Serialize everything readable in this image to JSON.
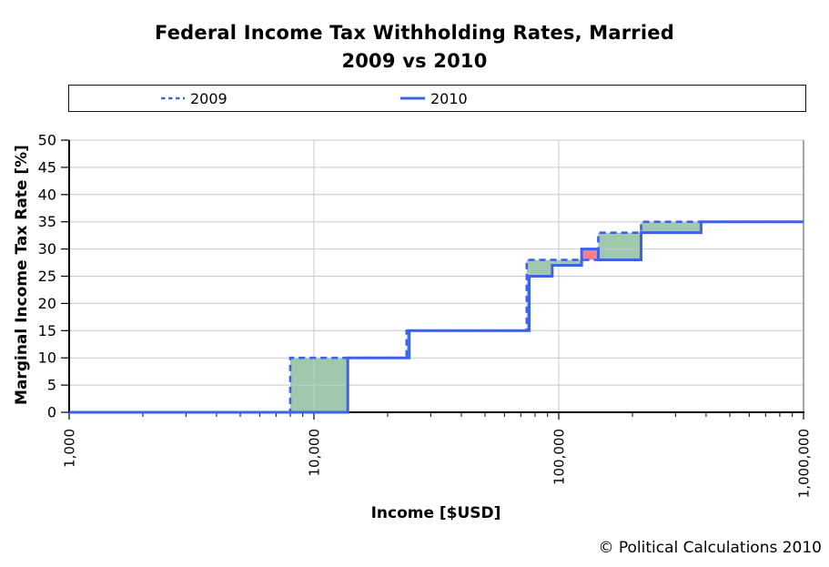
{
  "title": {
    "line1": "Federal Income Tax Withholding Rates, Married",
    "line2": "2009 vs 2010"
  },
  "legend": {
    "items": [
      {
        "label": "2009",
        "line_style": "dashed"
      },
      {
        "label": "2010",
        "line_style": "solid"
      }
    ]
  },
  "axes": {
    "x": {
      "title": "Income [$USD]",
      "scale": "log",
      "min": 1000,
      "max": 1000000,
      "tick_labels": [
        {
          "value": 1000,
          "label": "1,000"
        },
        {
          "value": 10000,
          "label": "10,000"
        },
        {
          "value": 100000,
          "label": "100,000"
        },
        {
          "value": 1000000,
          "label": "1,000,000"
        }
      ]
    },
    "y": {
      "title": "Marginal Income Tax Rate [%]",
      "min": 0,
      "max": 50,
      "tick_step": 5
    }
  },
  "footer": {
    "copyright": "© Political Calculations 2010"
  },
  "colors": {
    "line_blue": "#3D62E9",
    "green_fill": "#A0C8AC",
    "red_fill": "#FB8186",
    "gridline": "#C9C9C9",
    "axis": "#000000",
    "plot_border": "#8A8A8A"
  },
  "chart_data": {
    "type": "line",
    "subtype": "step",
    "x_scale": "log",
    "xlim": [
      1000,
      1000000
    ],
    "ylim": [
      0,
      50
    ],
    "grid": true,
    "legend_position": "top",
    "series": [
      {
        "name": "2009",
        "line_style": "dashed",
        "color": "#3D62E9",
        "steps": [
          {
            "from": 1000,
            "rate": 0
          },
          {
            "from": 8000,
            "rate": 10
          },
          {
            "from": 23900,
            "rate": 15
          },
          {
            "from": 74000,
            "rate": 28
          },
          {
            "from": 145050,
            "rate": 33
          },
          {
            "from": 217000,
            "rate": 35
          }
        ]
      },
      {
        "name": "2010",
        "line_style": "solid",
        "color": "#3D62E9",
        "steps": [
          {
            "from": 1000,
            "rate": 0
          },
          {
            "from": 13750,
            "rate": 10
          },
          {
            "from": 24500,
            "rate": 15
          },
          {
            "from": 75750,
            "rate": 25
          },
          {
            "from": 94050,
            "rate": 27
          },
          {
            "from": 124050,
            "rate": 30
          },
          {
            "from": 145050,
            "rate": 28
          },
          {
            "from": 217000,
            "rate": 33
          },
          {
            "from": 381400,
            "rate": 35
          }
        ]
      }
    ],
    "difference_shading": {
      "green_fill": "#A0C8AC",
      "green_meaning": "2010 withholding rate lower than 2009",
      "red_fill": "#FB8186",
      "red_meaning": "2010 withholding rate higher than 2009"
    },
    "difference_regions": [
      {
        "x_from": 8000,
        "x_to": 13750,
        "rate_low": 0,
        "rate_high": 10,
        "color": "green"
      },
      {
        "x_from": 23900,
        "x_to": 24500,
        "rate_low": 10,
        "rate_high": 15,
        "color": "green"
      },
      {
        "x_from": 74000,
        "x_to": 75750,
        "rate_low": 15,
        "rate_high": 28,
        "color": "green"
      },
      {
        "x_from": 75750,
        "x_to": 94050,
        "rate_low": 25,
        "rate_high": 28,
        "color": "green"
      },
      {
        "x_from": 94050,
        "x_to": 124050,
        "rate_low": 27,
        "rate_high": 28,
        "color": "green"
      },
      {
        "x_from": 124050,
        "x_to": 145050,
        "rate_low": 28,
        "rate_high": 30,
        "color": "red"
      },
      {
        "x_from": 145050,
        "x_to": 217000,
        "rate_low": 28,
        "rate_high": 33,
        "color": "green"
      },
      {
        "x_from": 217000,
        "x_to": 381400,
        "rate_low": 33,
        "rate_high": 35,
        "color": "green"
      }
    ]
  }
}
